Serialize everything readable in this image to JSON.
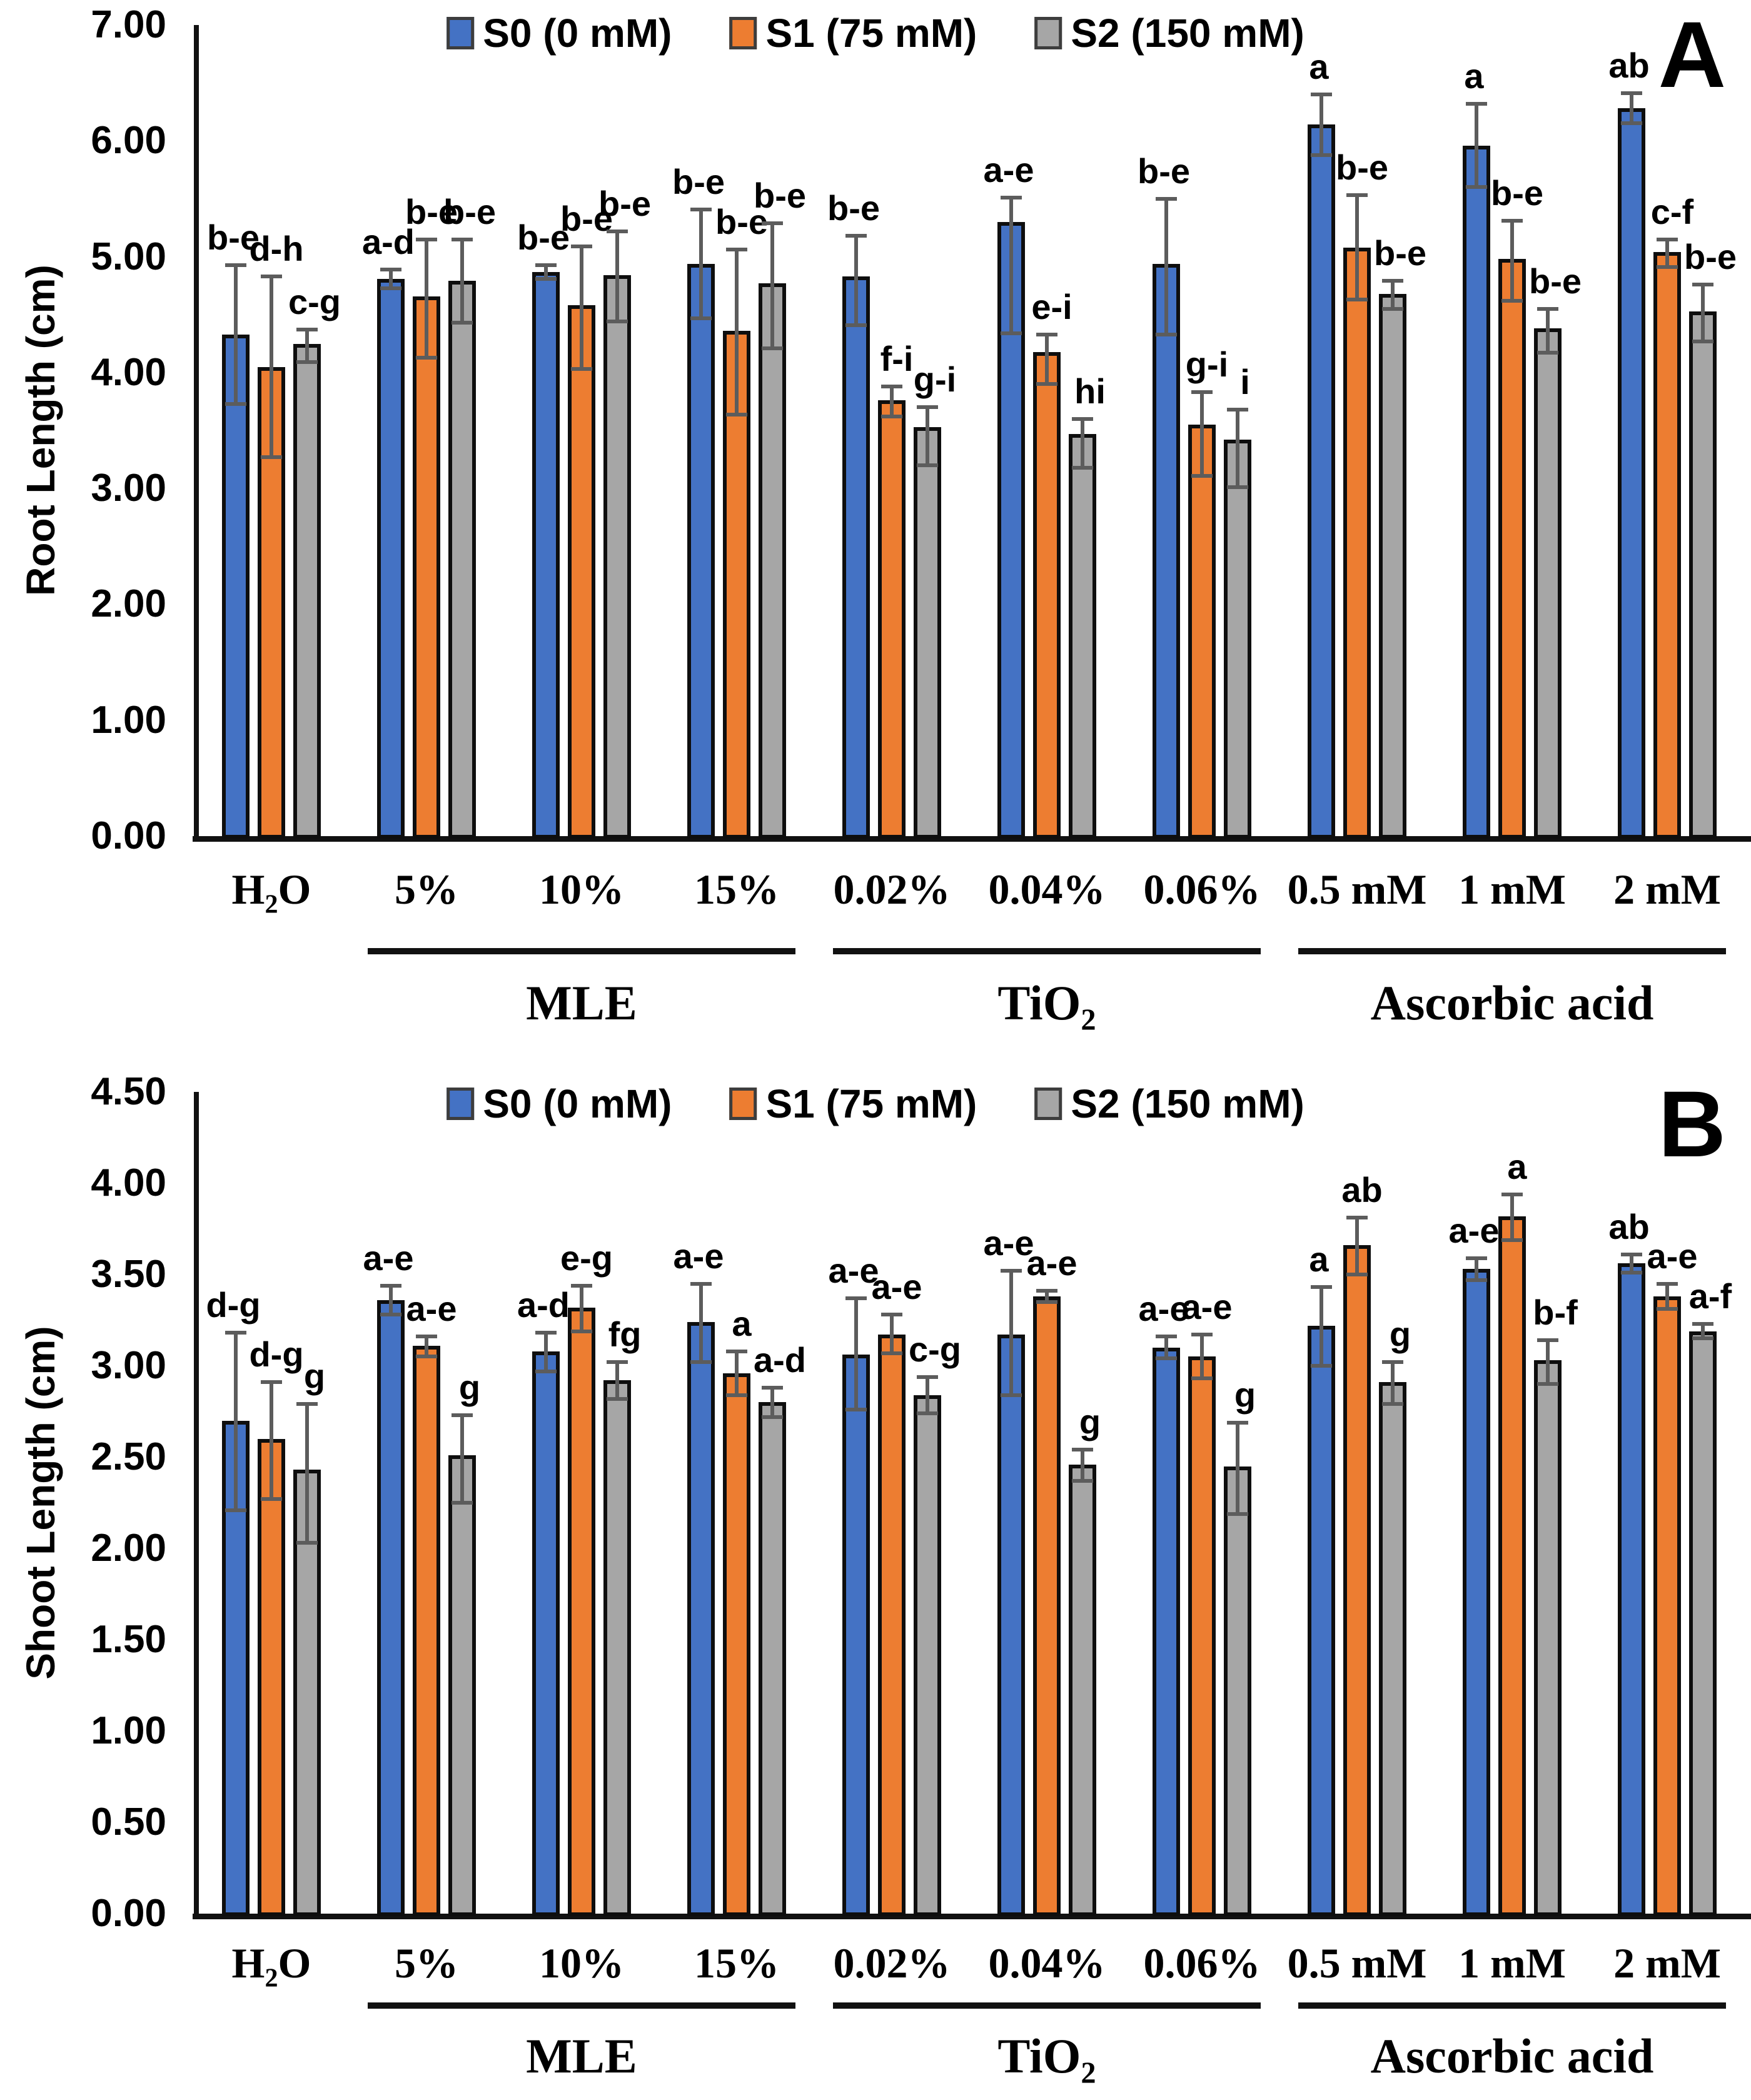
{
  "legend": {
    "items": [
      {
        "label": "S0 (0 mM)",
        "color": "#4472C4"
      },
      {
        "label": "S1 (75 mM)",
        "color": "#ED7D31"
      },
      {
        "label": "S2 (150 mM)",
        "color": "#A6A6A6"
      }
    ],
    "position": "top-center"
  },
  "colors": {
    "s0_blue": "#4472C4",
    "s1_orange": "#ED7D31",
    "s2_gray": "#A6A6A6",
    "bar_outline": "#0e0e0e",
    "error_bar": "#5c5c5c",
    "axis": "#111111"
  },
  "chart_data": [
    {
      "type": "bar",
      "panel_letter": "A",
      "title": "",
      "xlabel": "",
      "ylabel": "Root Length (cm)",
      "ylim": [
        0,
        7
      ],
      "ytick_step": 1.0,
      "ytick_labels": [
        "0.00",
        "1.00",
        "2.00",
        "3.00",
        "4.00",
        "5.00",
        "6.00",
        "7.00"
      ],
      "grid": false,
      "legend_position": "top-center",
      "categories": [
        {
          "label": "H2O",
          "pre": "H",
          "sub": "2",
          "post": "O"
        },
        {
          "label": "5%",
          "pre": "5%",
          "sub": "",
          "post": ""
        },
        {
          "label": "10%",
          "pre": "10%",
          "sub": "",
          "post": ""
        },
        {
          "label": "15%",
          "pre": "15%",
          "sub": "",
          "post": ""
        },
        {
          "label": "0.02%",
          "pre": "0.02%",
          "sub": "",
          "post": ""
        },
        {
          "label": "0.04%",
          "pre": "0.04%",
          "sub": "",
          "post": ""
        },
        {
          "label": "0.06%",
          "pre": "0.06%",
          "sub": "",
          "post": ""
        },
        {
          "label": "0.5 mM",
          "pre": "0.5 mM",
          "sub": "",
          "post": ""
        },
        {
          "label": "1 mM",
          "pre": "1 mM",
          "sub": "",
          "post": ""
        },
        {
          "label": "2 mM",
          "pre": "2 mM",
          "sub": "",
          "post": ""
        }
      ],
      "category_groups": [
        {
          "label": "MLE",
          "pre": "MLE",
          "sub": "",
          "post": "",
          "span": [
            1,
            3
          ]
        },
        {
          "label": "TiO2",
          "pre": "TiO",
          "sub": "2",
          "post": "",
          "span": [
            4,
            6
          ]
        },
        {
          "label": "Ascorbic acid",
          "pre": "Ascorbic acid",
          "sub": "",
          "post": "",
          "span": [
            7,
            9
          ]
        }
      ],
      "series": [
        {
          "name": "S0 (0 mM)",
          "color": "#4472C4",
          "values": [
            4.33,
            4.81,
            4.87,
            4.94,
            4.83,
            5.3,
            4.94,
            6.14,
            5.96,
            6.28
          ],
          "err_up": [
            0.6,
            0.08,
            0.06,
            0.47,
            0.35,
            0.21,
            0.56,
            0.26,
            0.36,
            0.13
          ],
          "err_down": [
            0.6,
            0.08,
            0.06,
            0.47,
            0.42,
            0.96,
            0.61,
            0.26,
            0.36,
            0.13
          ],
          "letters": [
            "b-e",
            "a-d",
            "b-e",
            "b-e",
            "b-e",
            "a-e",
            "b-e",
            "a",
            "a",
            "ab"
          ]
        },
        {
          "name": "S1 (75 mM)",
          "color": "#ED7D31",
          "values": [
            4.05,
            4.66,
            4.58,
            4.36,
            3.76,
            4.18,
            3.55,
            5.08,
            4.98,
            5.04
          ],
          "err_up": [
            0.78,
            0.49,
            0.51,
            0.7,
            0.12,
            0.15,
            0.28,
            0.45,
            0.33,
            0.11
          ],
          "err_down": [
            0.78,
            0.53,
            0.55,
            0.72,
            0.14,
            0.28,
            0.44,
            0.45,
            0.36,
            0.13
          ],
          "letters": [
            "d-h",
            "b-e",
            "b-e",
            "b-e",
            "f-i",
            "e-i",
            "g-i",
            "b-e",
            "b-e",
            "c-f"
          ]
        },
        {
          "name": "S2 (150 mM)",
          "color": "#A6A6A6",
          "values": [
            4.25,
            4.79,
            4.84,
            4.77,
            3.53,
            3.47,
            3.42,
            4.68,
            4.38,
            4.53
          ],
          "err_up": [
            0.12,
            0.36,
            0.38,
            0.52,
            0.17,
            0.13,
            0.26,
            0.11,
            0.17,
            0.23
          ],
          "err_down": [
            0.16,
            0.36,
            0.4,
            0.56,
            0.33,
            0.29,
            0.41,
            0.13,
            0.21,
            0.26
          ],
          "letters": [
            "c-g",
            "b-e",
            "b-e",
            "b-e",
            "g-i",
            "hi",
            "i",
            "b-e",
            "b-e",
            "b-e"
          ]
        }
      ]
    },
    {
      "type": "bar",
      "panel_letter": "B",
      "title": "",
      "xlabel": "",
      "ylabel": "Shoot Length (cm)",
      "ylim": [
        0,
        4.5
      ],
      "ytick_step": 0.5,
      "ytick_labels": [
        "0.00",
        "0.50",
        "1.00",
        "1.50",
        "2.00",
        "2.50",
        "3.00",
        "3.50",
        "4.00",
        "4.50"
      ],
      "grid": false,
      "legend_position": "top-center",
      "categories": [
        {
          "label": "H2O",
          "pre": "H",
          "sub": "2",
          "post": "O"
        },
        {
          "label": "5%",
          "pre": "5%",
          "sub": "",
          "post": ""
        },
        {
          "label": "10%",
          "pre": "10%",
          "sub": "",
          "post": ""
        },
        {
          "label": "15%",
          "pre": "15%",
          "sub": "",
          "post": ""
        },
        {
          "label": "0.02%",
          "pre": "0.02%",
          "sub": "",
          "post": ""
        },
        {
          "label": "0.04%",
          "pre": "0.04%",
          "sub": "",
          "post": ""
        },
        {
          "label": "0.06%",
          "pre": "0.06%",
          "sub": "",
          "post": ""
        },
        {
          "label": "0.5 mM",
          "pre": "0.5 mM",
          "sub": "",
          "post": ""
        },
        {
          "label": "1 mM",
          "pre": "1 mM",
          "sub": "",
          "post": ""
        },
        {
          "label": "2 mM",
          "pre": "2 mM",
          "sub": "",
          "post": ""
        }
      ],
      "category_groups": [
        {
          "label": "MLE",
          "pre": "MLE",
          "sub": "",
          "post": "",
          "span": [
            1,
            3
          ]
        },
        {
          "label": "TiO2",
          "pre": "TiO",
          "sub": "2",
          "post": "",
          "span": [
            4,
            6
          ]
        },
        {
          "label": "Ascorbic acid",
          "pre": "Ascorbic acid",
          "sub": "",
          "post": "",
          "span": [
            7,
            9
          ]
        }
      ],
      "series": [
        {
          "name": "S0 (0 mM)",
          "color": "#4472C4",
          "values": [
            2.7,
            3.36,
            3.08,
            3.24,
            3.06,
            3.17,
            3.1,
            3.22,
            3.53,
            3.56
          ],
          "err_up": [
            0.48,
            0.08,
            0.1,
            0.21,
            0.31,
            0.35,
            0.06,
            0.21,
            0.06,
            0.05
          ],
          "err_down": [
            0.49,
            0.08,
            0.11,
            0.22,
            0.3,
            0.33,
            0.06,
            0.22,
            0.06,
            0.05
          ],
          "letters": [
            "d-g",
            "a-e",
            "a-d",
            "a-e",
            "a-e",
            "a-e",
            "a-e",
            "a",
            "a-e",
            "ab"
          ]
        },
        {
          "name": "S1 (75 mM)",
          "color": "#ED7D31",
          "values": [
            2.6,
            3.11,
            3.32,
            2.96,
            3.17,
            3.38,
            3.05,
            3.66,
            3.82,
            3.38
          ],
          "err_up": [
            0.31,
            0.05,
            0.12,
            0.12,
            0.11,
            0.03,
            0.12,
            0.15,
            0.12,
            0.07
          ],
          "err_down": [
            0.33,
            0.06,
            0.13,
            0.12,
            0.1,
            0.03,
            0.12,
            0.16,
            0.13,
            0.07
          ],
          "letters": [
            "d-g",
            "a-e",
            "e-g",
            "a",
            "a-e",
            "a-e",
            "a-e",
            "ab",
            "a",
            "a-e"
          ]
        },
        {
          "name": "S2 (150 mM)",
          "color": "#A6A6A6",
          "values": [
            2.43,
            2.51,
            2.92,
            2.8,
            2.84,
            2.46,
            2.45,
            2.91,
            3.03,
            3.19
          ],
          "err_up": [
            0.36,
            0.22,
            0.1,
            0.08,
            0.1,
            0.08,
            0.24,
            0.11,
            0.11,
            0.04
          ],
          "err_down": [
            0.4,
            0.26,
            0.1,
            0.08,
            0.1,
            0.09,
            0.26,
            0.12,
            0.13,
            0.04
          ],
          "letters": [
            "g",
            "g",
            "fg",
            "a-d",
            "c-g",
            "g",
            "g",
            "g",
            "b-f",
            "a-f"
          ]
        }
      ]
    }
  ]
}
